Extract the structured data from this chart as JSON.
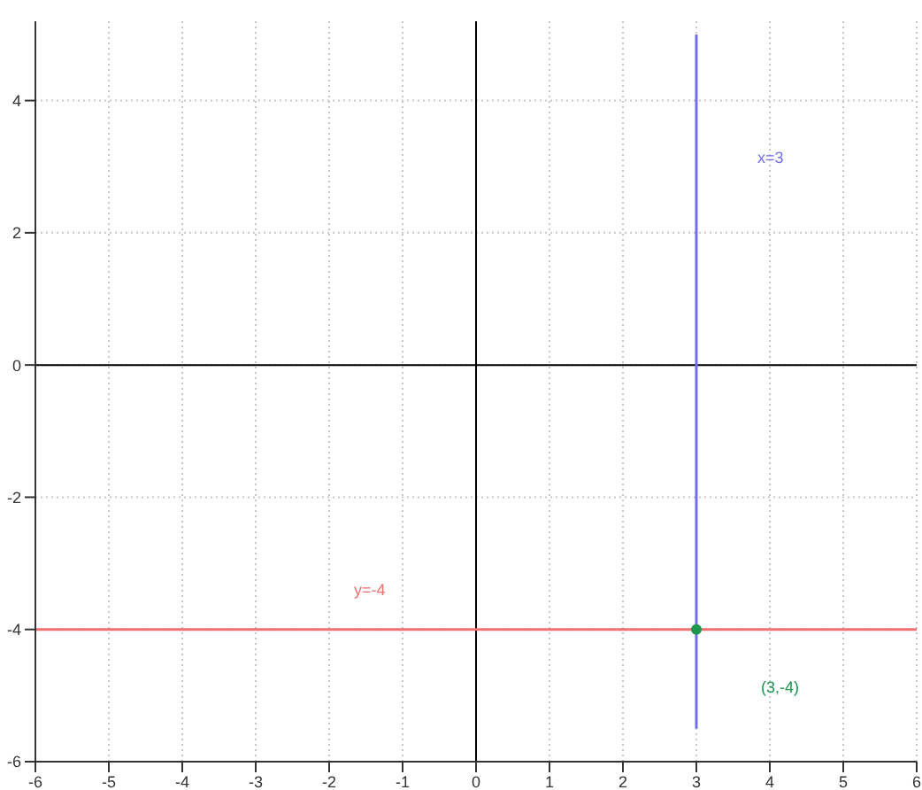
{
  "chart_data": {
    "type": "line",
    "series": [
      {
        "color": "#6f6ff0",
        "x": [
          3,
          3
        ],
        "values": [
          5,
          -5.5
        ]
      },
      {
        "color": "#f07070",
        "x": [
          -6,
          6
        ],
        "values": [
          -4,
          -4
        ]
      },
      {
        "type": "scatter",
        "color": "#1e9650",
        "x": [
          3
        ],
        "values": [
          -4
        ],
        "marker": "circle"
      }
    ],
    "xlim": [
      -6,
      6
    ],
    "xticks": [
      -6,
      -5,
      -4,
      -3,
      -2,
      -1,
      0,
      1,
      2,
      3,
      4,
      5,
      6
    ],
    "ylim": [
      -6,
      5.2
    ],
    "yticks": [
      -6,
      -4,
      -2,
      0,
      2,
      4
    ],
    "grid": true,
    "annotations": [
      "x=3",
      "y=-4",
      "(3,-4)"
    ]
  }
}
